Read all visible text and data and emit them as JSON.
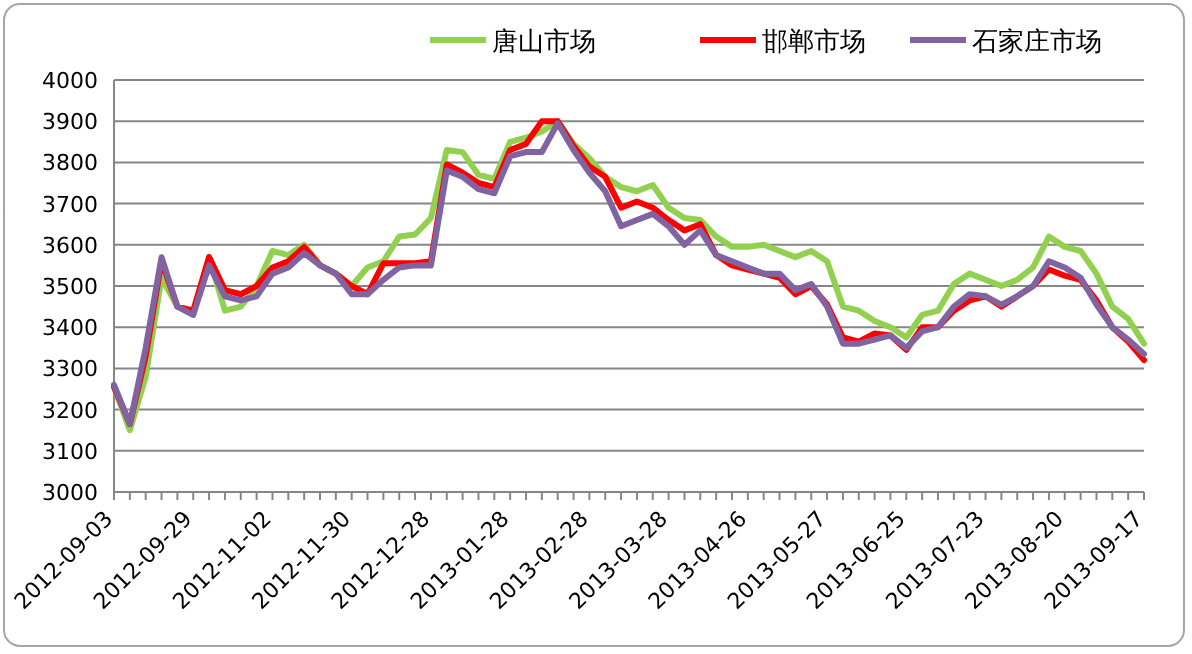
{
  "chart_data": {
    "type": "line",
    "categories": [
      "2012-09-03",
      null,
      null,
      null,
      null,
      "2012-09-29",
      null,
      null,
      null,
      null,
      "2012-11-02",
      null,
      null,
      null,
      null,
      "2012-11-30",
      null,
      null,
      null,
      null,
      "2012-12-28",
      null,
      null,
      null,
      null,
      "2013-01-28",
      null,
      null,
      null,
      null,
      "2013-02-28",
      null,
      null,
      null,
      null,
      "2013-03-28",
      null,
      null,
      null,
      null,
      "2013-04-26",
      null,
      null,
      null,
      null,
      "2013-05-27",
      null,
      null,
      null,
      null,
      "2013-06-25",
      null,
      null,
      null,
      null,
      "2013-07-23",
      null,
      null,
      null,
      null,
      "2013-08-20",
      null,
      null,
      null,
      null,
      "2013-09-17"
    ],
    "series": [
      {
        "name": "唐山市场",
        "color": "#92d050",
        "values": [
          3255,
          3150,
          3280,
          3520,
          3450,
          3430,
          3570,
          3440,
          3450,
          3500,
          3585,
          3575,
          3600,
          3550,
          3530,
          3500,
          3545,
          3560,
          3620,
          3625,
          3665,
          3830,
          3825,
          3770,
          3760,
          3850,
          3860,
          3875,
          3900,
          3845,
          3810,
          3765,
          3740,
          3730,
          3745,
          3690,
          3665,
          3660,
          3620,
          3595,
          3595,
          3600,
          3585,
          3570,
          3585,
          3560,
          3450,
          3440,
          3415,
          3400,
          3375,
          3430,
          3440,
          3505,
          3530,
          3515,
          3500,
          3515,
          3545,
          3620,
          3595,
          3585,
          3530,
          3450,
          3420,
          3360
        ]
      },
      {
        "name": "邯郸市场",
        "color": "#ff0000",
        "values": [
          3255,
          3165,
          3330,
          3560,
          3450,
          3440,
          3570,
          3490,
          3480,
          3500,
          3545,
          3560,
          3595,
          3550,
          3530,
          3500,
          3480,
          3555,
          3555,
          3555,
          3560,
          3795,
          3775,
          3750,
          3740,
          3830,
          3845,
          3900,
          3900,
          3840,
          3790,
          3765,
          3690,
          3705,
          3690,
          3660,
          3635,
          3650,
          3575,
          3550,
          3540,
          3530,
          3520,
          3480,
          3500,
          3455,
          3375,
          3365,
          3385,
          3380,
          3345,
          3400,
          3400,
          3440,
          3465,
          3475,
          3450,
          3475,
          3500,
          3540,
          3525,
          3515,
          3465,
          3400,
          3365,
          3320
        ]
      },
      {
        "name": "石家庄市场",
        "color": "#8064a2",
        "values": [
          3260,
          3165,
          3350,
          3570,
          3450,
          3430,
          3550,
          3475,
          3465,
          3475,
          3530,
          3545,
          3580,
          3550,
          3530,
          3480,
          3480,
          3515,
          3545,
          3550,
          3550,
          3780,
          3765,
          3735,
          3725,
          3815,
          3825,
          3825,
          3895,
          3830,
          3775,
          3730,
          3645,
          3660,
          3675,
          3645,
          3600,
          3635,
          3575,
          3560,
          3545,
          3530,
          3530,
          3490,
          3505,
          3450,
          3360,
          3360,
          3370,
          3380,
          3350,
          3390,
          3400,
          3450,
          3480,
          3475,
          3455,
          3475,
          3500,
          3560,
          3545,
          3520,
          3455,
          3400,
          3370,
          3335
        ]
      }
    ],
    "ylim": [
      3000,
      4000
    ],
    "yticks": [
      3000,
      3100,
      3200,
      3300,
      3400,
      3500,
      3600,
      3700,
      3800,
      3900,
      4000
    ],
    "grid": "y",
    "legend": "top",
    "marker": "none",
    "line_style": "solid"
  }
}
